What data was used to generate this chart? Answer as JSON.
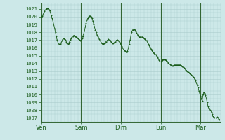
{
  "bg_color": "#cce8e8",
  "plot_bg_color": "#cce8e8",
  "line_color": "#1a5c1a",
  "grid_color": "#aacccc",
  "tick_label_color": "#1a5c1a",
  "ytick_labels": [
    1007,
    1008,
    1009,
    1010,
    1011,
    1012,
    1013,
    1014,
    1015,
    1016,
    1017,
    1018,
    1019,
    1020,
    1021
  ],
  "ylim": [
    1006.5,
    1021.8
  ],
  "xtick_labels": [
    "Ven",
    "Sam",
    "Dim",
    "Lun",
    "Mar"
  ],
  "xtick_positions": [
    0,
    48,
    96,
    144,
    192
  ],
  "separator_positions": [
    0,
    48,
    96,
    144,
    192
  ],
  "pressure_data": [
    1020.0,
    1020.1,
    1020.3,
    1020.5,
    1020.7,
    1020.9,
    1021.0,
    1021.1,
    1021.1,
    1021.0,
    1020.8,
    1020.5,
    1020.2,
    1019.8,
    1019.4,
    1019.0,
    1018.5,
    1018.0,
    1017.5,
    1017.0,
    1016.7,
    1016.5,
    1016.4,
    1016.5,
    1016.7,
    1016.9,
    1017.1,
    1017.2,
    1017.1,
    1017.0,
    1016.8,
    1016.6,
    1016.5,
    1016.6,
    1016.8,
    1017.0,
    1017.2,
    1017.4,
    1017.5,
    1017.6,
    1017.6,
    1017.5,
    1017.4,
    1017.3,
    1017.2,
    1017.1,
    1017.0,
    1016.9,
    1017.0,
    1017.2,
    1017.5,
    1017.8,
    1018.2,
    1018.7,
    1019.2,
    1019.6,
    1019.8,
    1020.0,
    1020.1,
    1020.1,
    1020.0,
    1019.8,
    1019.5,
    1019.1,
    1018.7,
    1018.3,
    1018.0,
    1017.7,
    1017.5,
    1017.3,
    1017.1,
    1016.9,
    1016.7,
    1016.6,
    1016.5,
    1016.5,
    1016.6,
    1016.7,
    1016.8,
    1016.9,
    1017.0,
    1017.1,
    1017.0,
    1016.9,
    1016.8,
    1016.7,
    1016.6,
    1016.6,
    1016.7,
    1016.8,
    1016.9,
    1017.0,
    1017.0,
    1016.9,
    1016.8,
    1016.6,
    1016.4,
    1016.2,
    1016.0,
    1015.8,
    1015.7,
    1015.6,
    1015.5,
    1015.4,
    1015.6,
    1016.0,
    1016.5,
    1017.0,
    1017.6,
    1018.0,
    1018.3,
    1018.4,
    1018.4,
    1018.3,
    1018.1,
    1017.9,
    1017.7,
    1017.5,
    1017.4,
    1017.4,
    1017.4,
    1017.4,
    1017.4,
    1017.3,
    1017.2,
    1017.1,
    1017.0,
    1016.9,
    1016.7,
    1016.5,
    1016.3,
    1016.1,
    1015.9,
    1015.7,
    1015.5,
    1015.4,
    1015.3,
    1015.2,
    1015.1,
    1015.0,
    1014.8,
    1014.6,
    1014.4,
    1014.2,
    1014.2,
    1014.3,
    1014.4,
    1014.5,
    1014.5,
    1014.5,
    1014.4,
    1014.3,
    1014.2,
    1014.1,
    1014.0,
    1013.9,
    1013.8,
    1013.7,
    1013.7,
    1013.7,
    1013.8,
    1013.8,
    1013.8,
    1013.8,
    1013.8,
    1013.8,
    1013.8,
    1013.8,
    1013.8,
    1013.7,
    1013.6,
    1013.5,
    1013.4,
    1013.3,
    1013.2,
    1013.1,
    1013.0,
    1012.9,
    1012.8,
    1012.7,
    1012.6,
    1012.5,
    1012.4,
    1012.3,
    1012.2,
    1012.0,
    1011.8,
    1011.5,
    1011.2,
    1010.9,
    1010.5,
    1010.1,
    1009.8,
    1009.5,
    1009.2,
    1010.0,
    1010.3,
    1010.2,
    1009.9,
    1009.5,
    1009.0,
    1008.5,
    1008.2,
    1008.0,
    1008.0,
    1007.8,
    1007.5,
    1007.2,
    1007.1,
    1007.0,
    1007.0,
    1007.0,
    1007.1,
    1007.0,
    1006.9,
    1006.8
  ]
}
